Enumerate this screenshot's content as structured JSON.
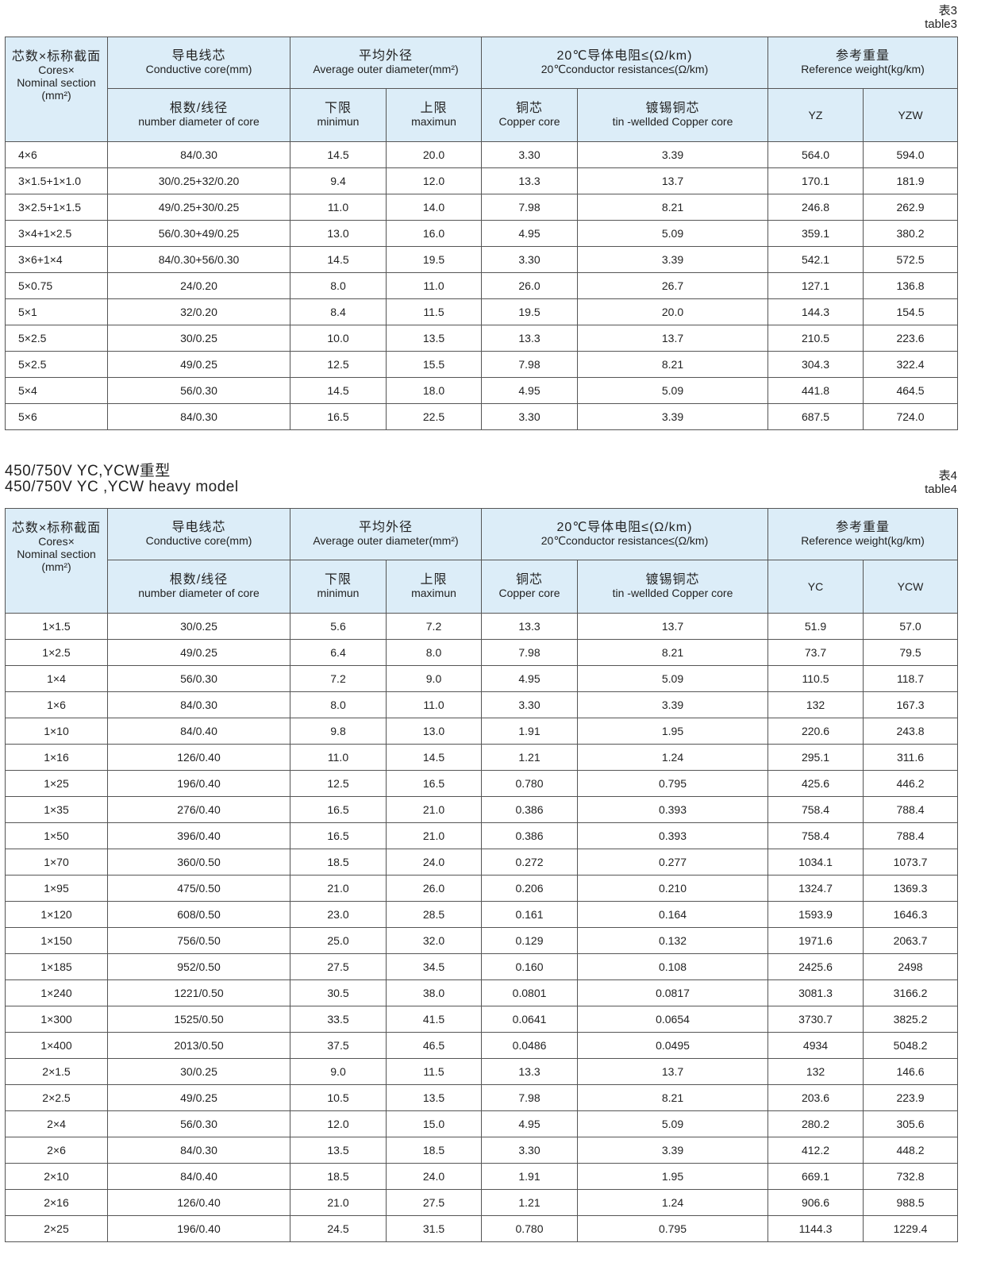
{
  "table3": {
    "label_zh": "表3",
    "label_en": "table3",
    "group": "YZ",
    "headers": {
      "cores_zh": "芯数×标称截面",
      "cores_en1": "Cores×",
      "cores_en2": "Nominal section",
      "cores_en3": "(mm²)",
      "core_zh": "导电线芯",
      "core_en": "Conductive core(mm)",
      "diam_zh": "平均外径",
      "diam_en": "Average outer diameter(mm²)",
      "res_zh": "20℃导体电阻≤(Ω/km)",
      "res_en": "20℃conductor resistance≤(Ω/km)",
      "wt_zh": "参考重量",
      "wt_en": "Reference weight(kg/km)",
      "num_zh": "根数/线径",
      "num_en": "number diameter of core",
      "min_zh": "下限",
      "min_en": "minimun",
      "max_zh": "上限",
      "max_en": "maximun",
      "cu_zh": "铜芯",
      "cu_en": "Copper core",
      "tin_zh": "镀锡铜芯",
      "tin_en": "tin -wellded Copper core",
      "w1": "YZ",
      "w2": "YZW"
    },
    "rows": [
      [
        "4×6",
        "84/0.30",
        "14.5",
        "20.0",
        "3.30",
        "3.39",
        "564.0",
        "594.0"
      ],
      [
        "3×1.5+1×1.0",
        "30/0.25+32/0.20",
        "9.4",
        "12.0",
        "13.3",
        "13.7",
        "170.1",
        "181.9"
      ],
      [
        "3×2.5+1×1.5",
        "49/0.25+30/0.25",
        "11.0",
        "14.0",
        "7.98",
        "8.21",
        "246.8",
        "262.9"
      ],
      [
        "3×4+1×2.5",
        "56/0.30+49/0.25",
        "13.0",
        "16.0",
        "4.95",
        "5.09",
        "359.1",
        "380.2"
      ],
      [
        "3×6+1×4",
        "84/0.30+56/0.30",
        "14.5",
        "19.5",
        "3.30",
        "3.39",
        "542.1",
        "572.5"
      ],
      [
        "5×0.75",
        "24/0.20",
        "8.0",
        "11.0",
        "26.0",
        "26.7",
        "127.1",
        "136.8"
      ],
      [
        "5×1",
        "32/0.20",
        "8.4",
        "11.5",
        "19.5",
        "20.0",
        "144.3",
        "154.5"
      ],
      [
        "5×2.5",
        "30/0.25",
        "10.0",
        "13.5",
        "13.3",
        "13.7",
        "210.5",
        "223.6"
      ],
      [
        "5×2.5",
        "49/0.25",
        "12.5",
        "15.5",
        "7.98",
        "8.21",
        "304.3",
        "322.4"
      ],
      [
        "5×4",
        "56/0.30",
        "14.5",
        "18.0",
        "4.95",
        "5.09",
        "441.8",
        "464.5"
      ],
      [
        "5×6",
        "84/0.30",
        "16.5",
        "22.5",
        "3.30",
        "3.39",
        "687.5",
        "724.0"
      ]
    ]
  },
  "table4": {
    "title_zh": "450/750V YC,YCW重型",
    "title_en": "450/750V YC ,YCW heavy model",
    "label_zh": "表4",
    "label_en": "table4",
    "headers": {
      "w1": "YC",
      "w2": "YCW"
    },
    "rows": [
      [
        "1×1.5",
        "30/0.25",
        "5.6",
        "7.2",
        "13.3",
        "13.7",
        "51.9",
        "57.0"
      ],
      [
        "1×2.5",
        "49/0.25",
        "6.4",
        "8.0",
        "7.98",
        "8.21",
        "73.7",
        "79.5"
      ],
      [
        "1×4",
        "56/0.30",
        "7.2",
        "9.0",
        "4.95",
        "5.09",
        "110.5",
        "118.7"
      ],
      [
        "1×6",
        "84/0.30",
        "8.0",
        "11.0",
        "3.30",
        "3.39",
        "132",
        "167.3"
      ],
      [
        "1×10",
        "84/0.40",
        "9.8",
        "13.0",
        "1.91",
        "1.95",
        "220.6",
        "243.8"
      ],
      [
        "1×16",
        "126/0.40",
        "11.0",
        "14.5",
        "1.21",
        "1.24",
        "295.1",
        "311.6"
      ],
      [
        "1×25",
        "196/0.40",
        "12.5",
        "16.5",
        "0.780",
        "0.795",
        "425.6",
        "446.2"
      ],
      [
        "1×35",
        "276/0.40",
        "16.5",
        "21.0",
        "0.386",
        "0.393",
        "758.4",
        "788.4"
      ],
      [
        "1×50",
        "396/0.40",
        "16.5",
        "21.0",
        "0.386",
        "0.393",
        "758.4",
        "788.4"
      ],
      [
        "1×70",
        "360/0.50",
        "18.5",
        "24.0",
        "0.272",
        "0.277",
        "1034.1",
        "1073.7"
      ],
      [
        "1×95",
        "475/0.50",
        "21.0",
        "26.0",
        "0.206",
        "0.210",
        "1324.7",
        "1369.3"
      ],
      [
        "1×120",
        "608/0.50",
        "23.0",
        "28.5",
        "0.161",
        "0.164",
        "1593.9",
        "1646.3"
      ],
      [
        "1×150",
        "756/0.50",
        "25.0",
        "32.0",
        "0.129",
        "0.132",
        "1971.6",
        "2063.7"
      ],
      [
        "1×185",
        "952/0.50",
        "27.5",
        "34.5",
        "0.160",
        "0.108",
        "2425.6",
        "2498"
      ],
      [
        "1×240",
        "1221/0.50",
        "30.5",
        "38.0",
        "0.0801",
        "0.0817",
        "3081.3",
        "3166.2"
      ],
      [
        "1×300",
        "1525/0.50",
        "33.5",
        "41.5",
        "0.0641",
        "0.0654",
        "3730.7",
        "3825.2"
      ],
      [
        "1×400",
        "2013/0.50",
        "37.5",
        "46.5",
        "0.0486",
        "0.0495",
        "4934",
        "5048.2"
      ],
      [
        "2×1.5",
        "30/0.25",
        "9.0",
        "11.5",
        "13.3",
        "13.7",
        "132",
        "146.6"
      ],
      [
        "2×2.5",
        "49/0.25",
        "10.5",
        "13.5",
        "7.98",
        "8.21",
        "203.6",
        "223.9"
      ],
      [
        "2×4",
        "56/0.30",
        "12.0",
        "15.0",
        "4.95",
        "5.09",
        "280.2",
        "305.6"
      ],
      [
        "2×6",
        "84/0.30",
        "13.5",
        "18.5",
        "3.30",
        "3.39",
        "412.2",
        "448.2"
      ],
      [
        "2×10",
        "84/0.40",
        "18.5",
        "24.0",
        "1.91",
        "1.95",
        "669.1",
        "732.8"
      ],
      [
        "2×16",
        "126/0.40",
        "21.0",
        "27.5",
        "1.21",
        "1.24",
        "906.6",
        "988.5"
      ],
      [
        "2×25",
        "196/0.40",
        "24.5",
        "31.5",
        "0.780",
        "0.795",
        "1144.3",
        "1229.4"
      ]
    ]
  }
}
